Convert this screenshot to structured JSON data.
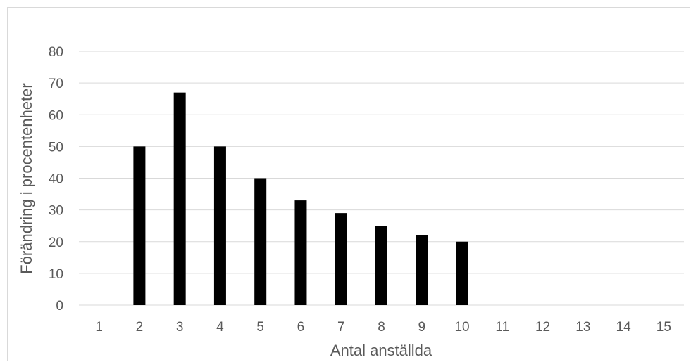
{
  "chart_data": {
    "type": "bar",
    "title": "",
    "xlabel": "Antal anställda",
    "ylabel": "Förändring i procentenheter",
    "categories": [
      "1",
      "2",
      "3",
      "4",
      "5",
      "6",
      "7",
      "8",
      "9",
      "10",
      "11",
      "12",
      "13",
      "14",
      "15"
    ],
    "values": [
      0,
      50,
      67,
      50,
      40,
      33,
      29,
      25,
      22,
      20,
      0,
      0,
      0,
      0,
      0
    ],
    "ylim": [
      0,
      80
    ],
    "yticks": [
      0,
      10,
      20,
      30,
      40,
      50,
      60,
      70,
      80
    ],
    "grid": true,
    "legend": "none",
    "bar_color": "#000000",
    "grid_color": "#d9d9d9",
    "text_color": "#595959"
  }
}
